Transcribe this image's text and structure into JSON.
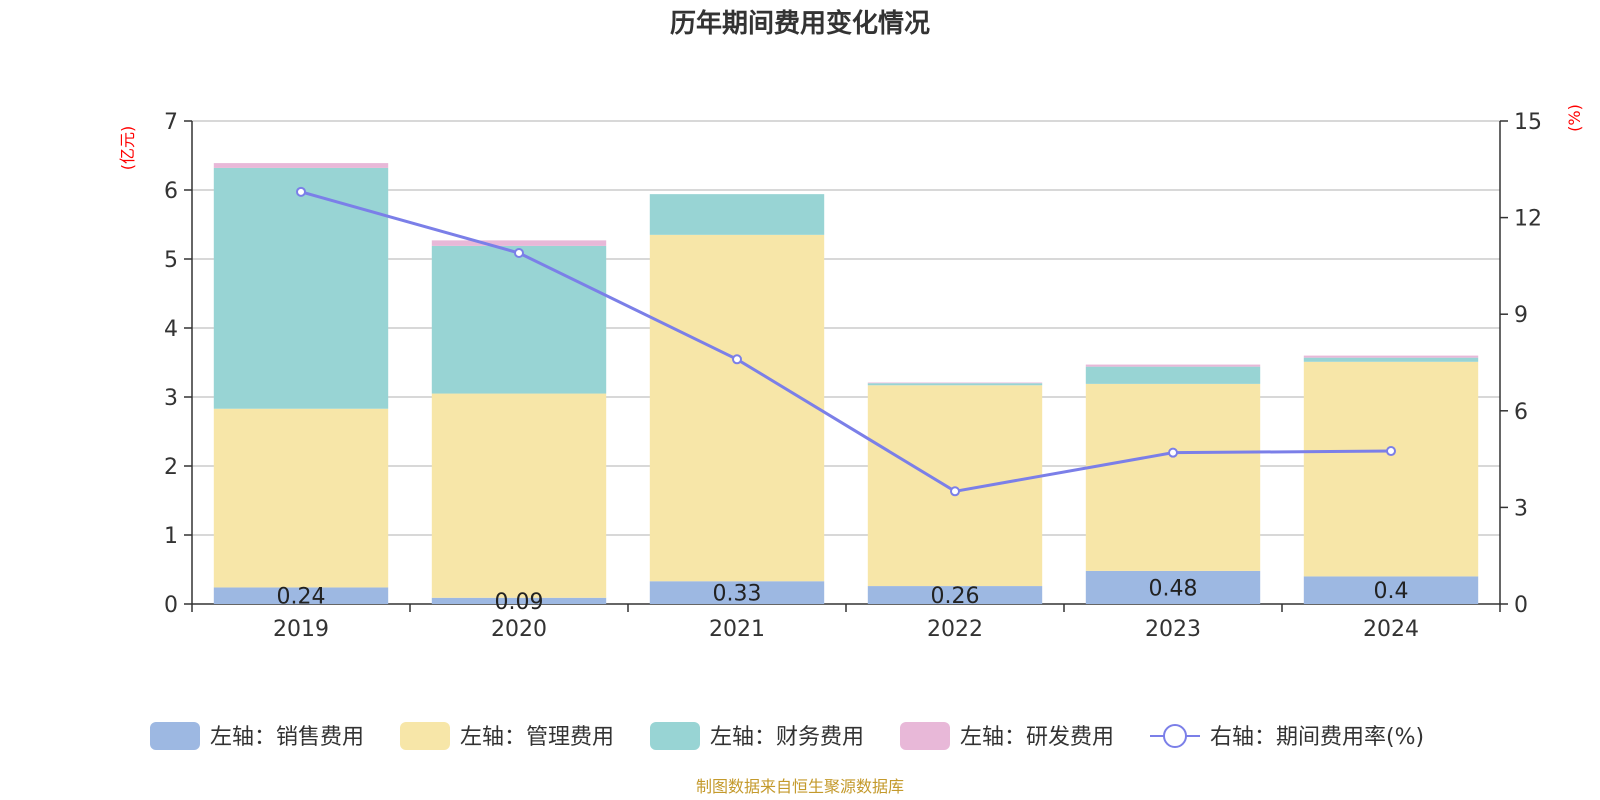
{
  "chart_data": {
    "type": "bar",
    "stacked": true,
    "title": "历年期间费用变化情况",
    "categories": [
      "2019",
      "2020",
      "2021",
      "2022",
      "2023",
      "2024"
    ],
    "left_axis": {
      "unit": "(亿元)",
      "ylim": [
        0,
        7
      ],
      "ticks": [
        "0",
        "1",
        "2",
        "3",
        "4",
        "5",
        "6",
        "7"
      ]
    },
    "right_axis": {
      "unit": "(%)",
      "ylim": [
        0,
        15
      ],
      "ticks": [
        "0",
        "3",
        "6",
        "9",
        "12",
        "15"
      ]
    },
    "series": [
      {
        "name": "左轴：销售费用",
        "axis": "left",
        "color": "#9db8e2",
        "values": [
          0.24,
          0.09,
          0.33,
          0.26,
          0.48,
          0.4
        ],
        "labels": [
          "0.24",
          "0.09",
          "0.33",
          "0.26",
          "0.48",
          "0.4"
        ]
      },
      {
        "name": "左轴：管理费用",
        "axis": "left",
        "color": "#f7e6a8",
        "values": [
          2.59,
          2.96,
          5.02,
          2.91,
          2.71,
          3.11
        ]
      },
      {
        "name": "左轴：财务费用",
        "axis": "left",
        "color": "#98d4d4",
        "values": [
          3.49,
          2.14,
          0.59,
          0.03,
          0.25,
          0.06
        ]
      },
      {
        "name": "左轴：研发费用",
        "axis": "left",
        "color": "#e8b8d8",
        "values": [
          0.07,
          0.08,
          0.0,
          0.01,
          0.03,
          0.03
        ]
      },
      {
        "name": "右轴：期间费用率(%)",
        "axis": "right",
        "type": "line",
        "color": "#7b7fe8",
        "values": [
          12.8,
          10.9,
          7.6,
          3.5,
          4.7,
          4.75
        ]
      }
    ],
    "grid": true,
    "legend": "bottom-center"
  },
  "footer": {
    "source": "制图数据来自恒生聚源数据库"
  }
}
